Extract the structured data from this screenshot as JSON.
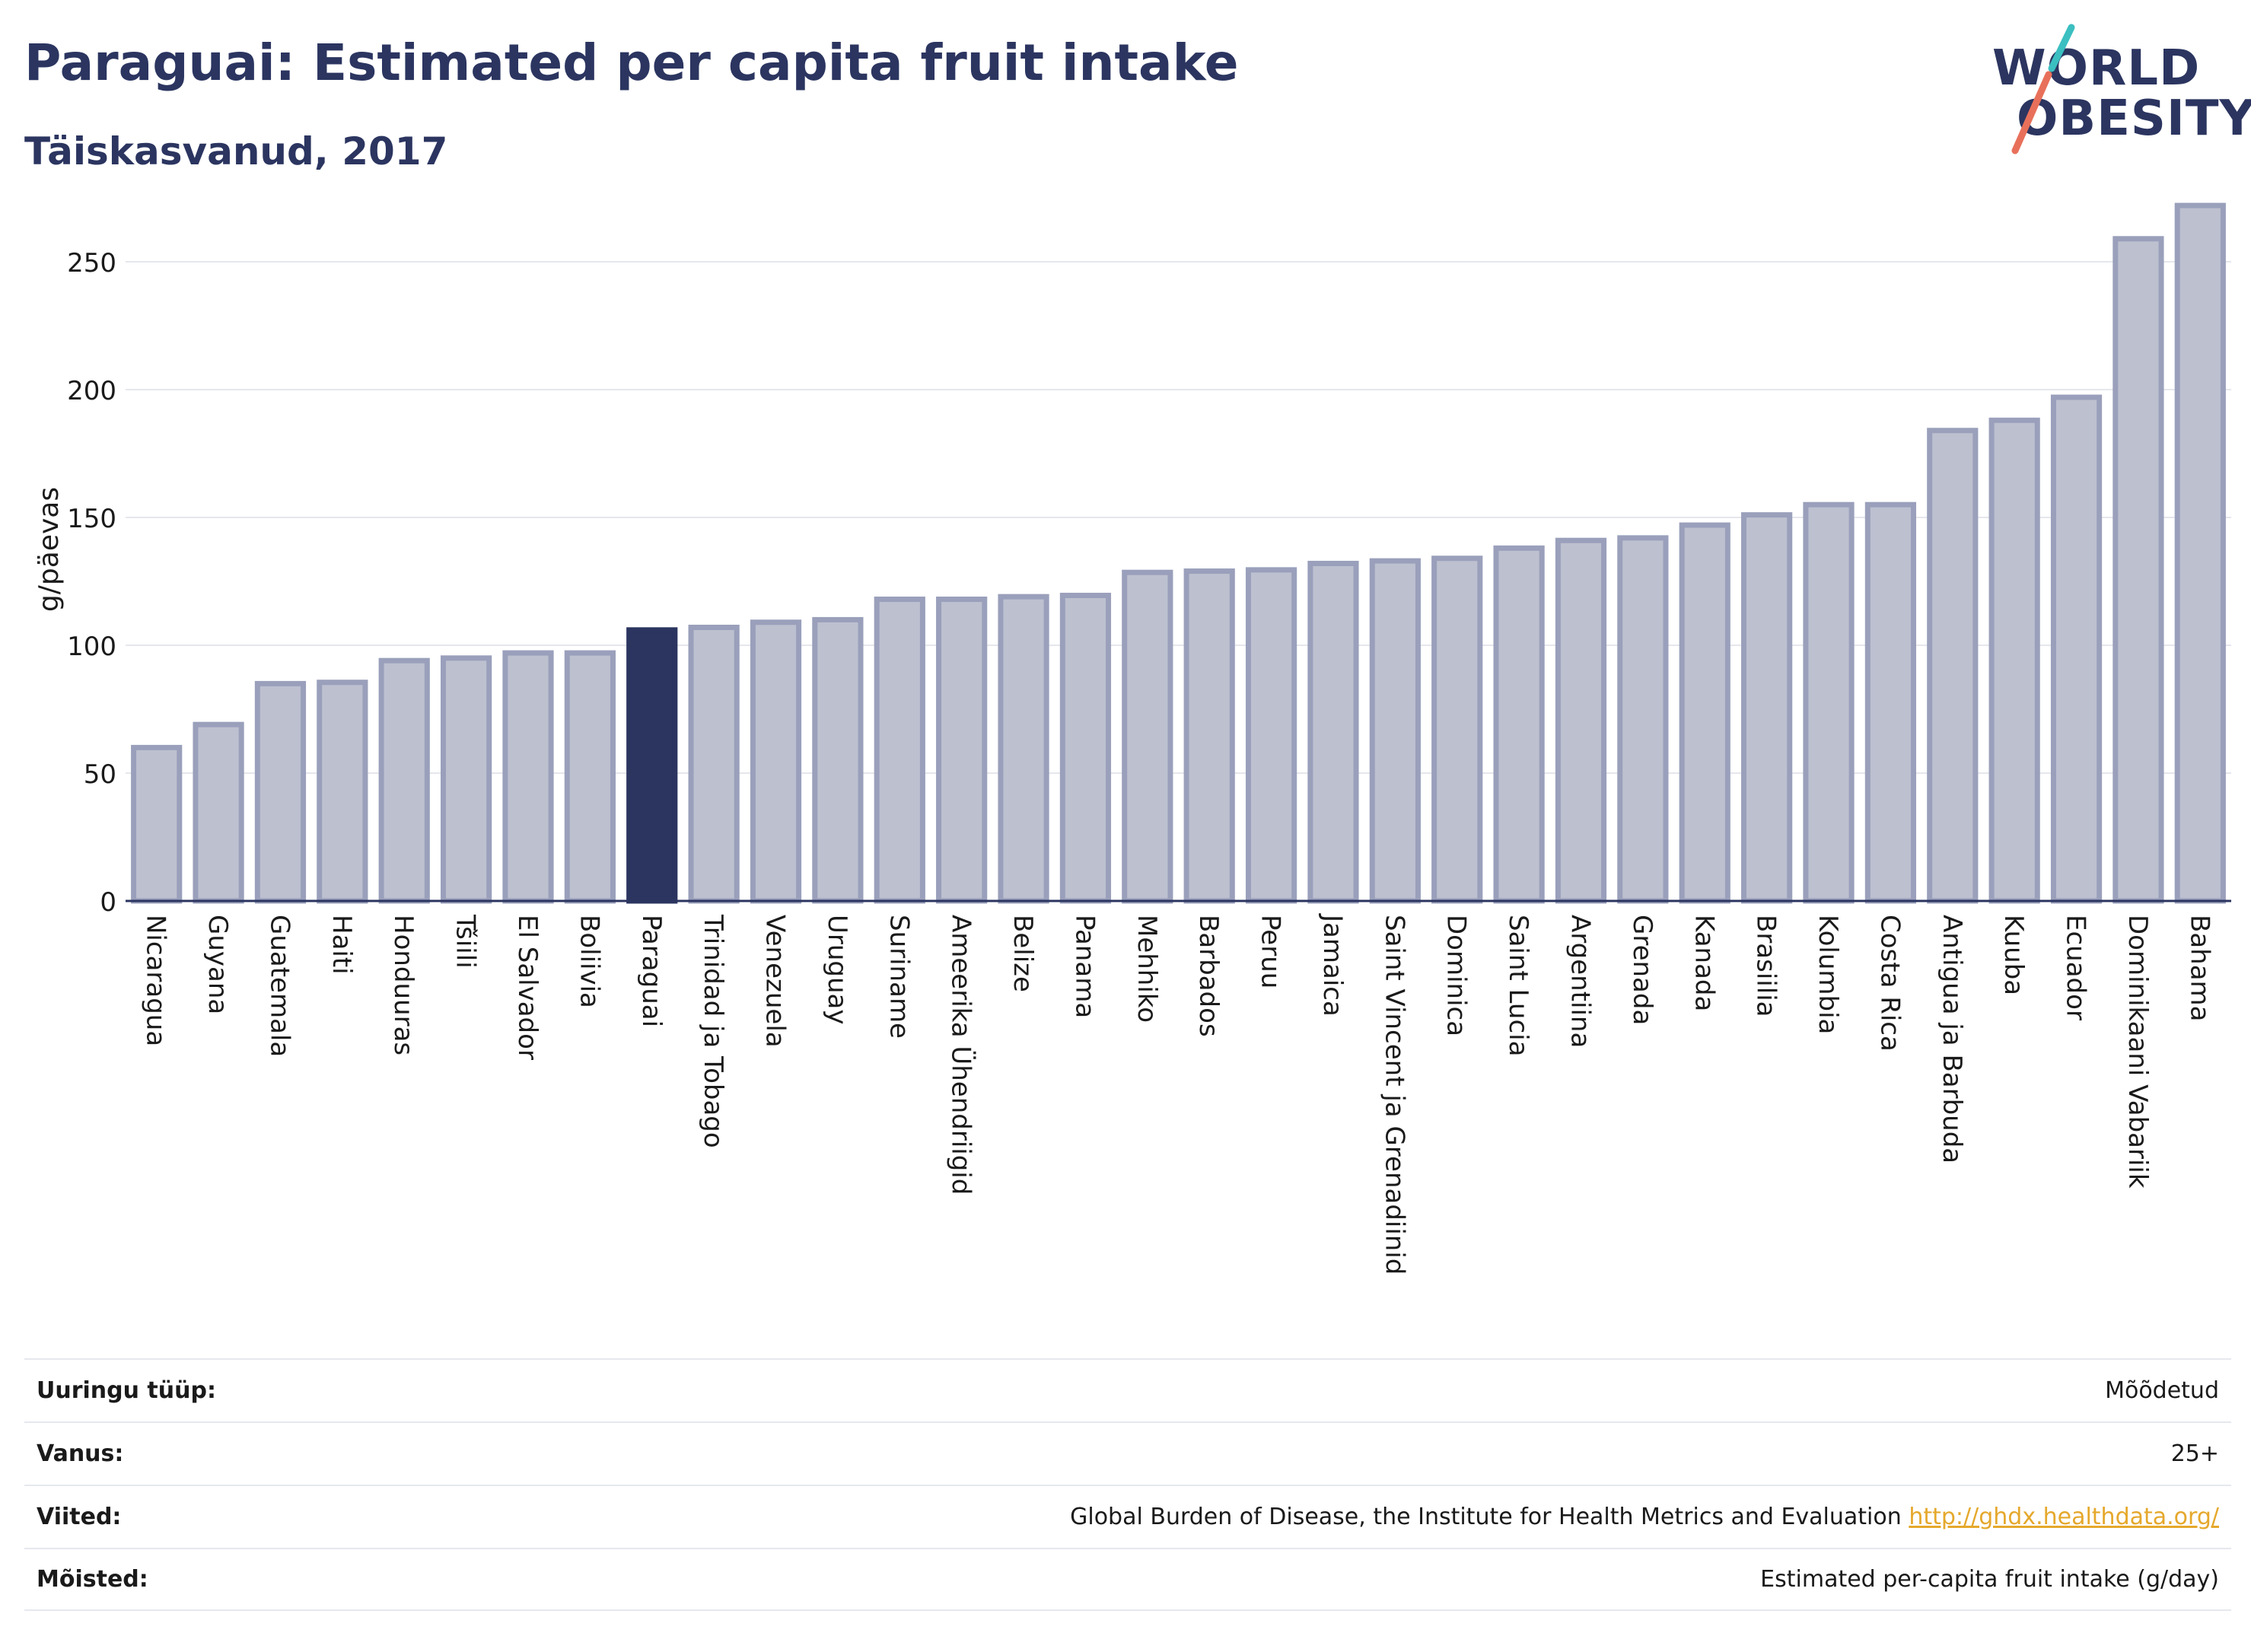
{
  "header": {
    "title": "Paraguai: Estimated per capita fruit intake",
    "subtitle": "Täiskasvanud, 2017"
  },
  "logo": {
    "line1": "WORLD",
    "line2": "OBESITY",
    "colors": {
      "text": "#2b3560",
      "slash_top": "#3bbfc1",
      "slash_bottom": "#e8705a"
    }
  },
  "chart_data": {
    "type": "bar",
    "ylabel": "g/päevas",
    "ylim": [
      0,
      275
    ],
    "yticks": [
      0,
      50,
      100,
      150,
      200,
      250
    ],
    "grid": true,
    "highlight": "Paraguai",
    "colors": {
      "bar": "#bdc0cf",
      "bar_edge": "#9aa0bb",
      "highlight": "#2b3560",
      "grid": "#e5e7ec"
    },
    "categories": [
      "Nicaragua",
      "Guyana",
      "Guatemala",
      "Haiti",
      "Honduuras",
      "Tšiili",
      "El Salvador",
      "Boliivia",
      "Paraguai",
      "Trinidad ja Tobago",
      "Venezuela",
      "Uruguay",
      "Suriname",
      "Ameerika Ühendriigid",
      "Belize",
      "Panama",
      "Mehhiko",
      "Barbados",
      "Peruu",
      "Jamaica",
      "Saint Vincent ja Grenadiinid",
      "Dominica",
      "Saint Lucia",
      "Argentiina",
      "Grenada",
      "Kanada",
      "Brasiilia",
      "Kolumbia",
      "Costa Rica",
      "Antigua ja Barbuda",
      "Kuuba",
      "Ecuador",
      "Dominikaani Vabariik",
      "Bahama"
    ],
    "values": [
      60,
      69,
      85,
      85.5,
      94,
      95,
      97,
      97,
      106,
      107,
      109,
      110,
      118,
      118,
      119,
      119.5,
      128.5,
      129,
      129.5,
      132,
      133,
      134,
      138,
      141,
      142,
      147,
      151,
      155,
      155,
      184,
      188,
      197,
      259,
      272
    ]
  },
  "meta": {
    "rows": [
      {
        "label": "Uuringu tüüp:",
        "value": "Mõõdetud"
      },
      {
        "label": "Vanus:",
        "value": "25+"
      },
      {
        "label": "Viited:",
        "value": "Global Burden of Disease, the Institute for Health Metrics and Evaluation",
        "link": "http://ghdx.healthdata.org/"
      },
      {
        "label": "Mõisted:",
        "value": "Estimated per-capita fruit intake (g/day)"
      }
    ]
  }
}
